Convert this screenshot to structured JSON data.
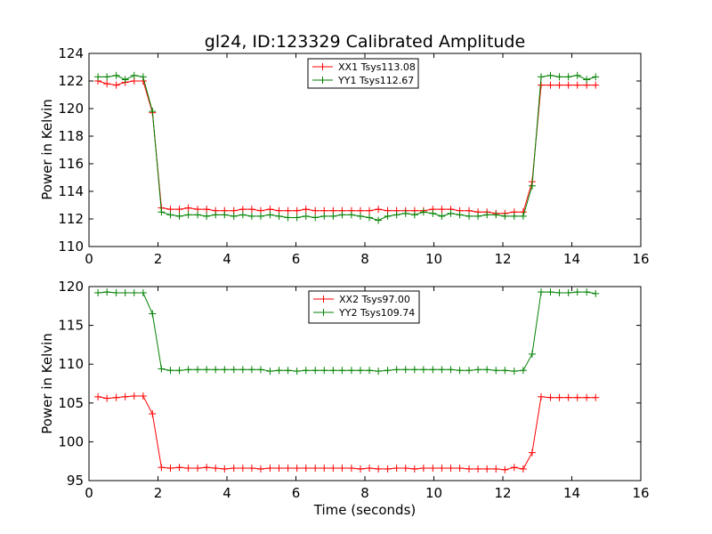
{
  "chart_data": [
    {
      "type": "line",
      "title": "gl24, ID:123329 Calibrated Amplitude",
      "xlabel": "",
      "ylabel": "Power in Kelvin",
      "xlim": [
        0,
        16
      ],
      "ylim": [
        110,
        124
      ],
      "xticks": [
        0,
        2,
        4,
        6,
        8,
        10,
        12,
        14,
        16
      ],
      "yticks": [
        110,
        112,
        114,
        116,
        118,
        120,
        122,
        124
      ],
      "grid": false,
      "legend_position": "top-center",
      "x": [
        0.26,
        0.52,
        0.79,
        1.05,
        1.31,
        1.57,
        1.84,
        2.1,
        2.36,
        2.62,
        2.88,
        3.15,
        3.41,
        3.67,
        3.93,
        4.2,
        4.46,
        4.72,
        4.98,
        5.25,
        5.51,
        5.77,
        6.03,
        6.29,
        6.56,
        6.82,
        7.08,
        7.34,
        7.61,
        7.87,
        8.13,
        8.39,
        8.66,
        8.92,
        9.18,
        9.44,
        9.7,
        9.97,
        10.23,
        10.49,
        10.75,
        11.02,
        11.28,
        11.54,
        11.8,
        12.06,
        12.33,
        12.59,
        12.85,
        13.11,
        13.38,
        13.64,
        13.9,
        14.16,
        14.43,
        14.69
      ],
      "series": [
        {
          "name": "XX1 Tsys113.08",
          "color": "#ff0000",
          "values": [
            122.0,
            121.8,
            121.7,
            121.9,
            122.0,
            122.0,
            119.7,
            112.8,
            112.7,
            112.7,
            112.8,
            112.7,
            112.7,
            112.6,
            112.6,
            112.6,
            112.7,
            112.7,
            112.6,
            112.7,
            112.6,
            112.6,
            112.6,
            112.7,
            112.6,
            112.6,
            112.6,
            112.6,
            112.6,
            112.6,
            112.6,
            112.7,
            112.6,
            112.6,
            112.6,
            112.6,
            112.6,
            112.7,
            112.7,
            112.7,
            112.6,
            112.6,
            112.5,
            112.5,
            112.4,
            112.4,
            112.5,
            112.5,
            114.7,
            121.7,
            121.7,
            121.7,
            121.7,
            121.7,
            121.7,
            121.7
          ]
        },
        {
          "name": "YY1 Tsys112.67",
          "color": "#008000",
          "values": [
            122.3,
            122.3,
            122.4,
            122.1,
            122.4,
            122.3,
            119.8,
            112.5,
            112.3,
            112.2,
            112.3,
            112.3,
            112.2,
            112.3,
            112.3,
            112.2,
            112.3,
            112.2,
            112.2,
            112.3,
            112.2,
            112.1,
            112.1,
            112.2,
            112.1,
            112.2,
            112.2,
            112.3,
            112.3,
            112.2,
            112.1,
            111.9,
            112.2,
            112.3,
            112.4,
            112.3,
            112.5,
            112.4,
            112.2,
            112.4,
            112.3,
            112.2,
            112.2,
            112.3,
            112.3,
            112.2,
            112.2,
            112.2,
            114.4,
            122.3,
            122.4,
            122.3,
            122.3,
            122.4,
            122.1,
            122.3
          ]
        }
      ]
    },
    {
      "type": "line",
      "title": "",
      "xlabel": "Time (seconds)",
      "ylabel": "Power in Kelvin",
      "xlim": [
        0,
        16
      ],
      "ylim": [
        95,
        120
      ],
      "xticks": [
        0,
        2,
        4,
        6,
        8,
        10,
        12,
        14,
        16
      ],
      "yticks": [
        95,
        100,
        105,
        110,
        115,
        120
      ],
      "grid": false,
      "legend_position": "top-center",
      "x": [
        0.26,
        0.52,
        0.79,
        1.05,
        1.31,
        1.57,
        1.84,
        2.1,
        2.36,
        2.62,
        2.88,
        3.15,
        3.41,
        3.67,
        3.93,
        4.2,
        4.46,
        4.72,
        4.98,
        5.25,
        5.51,
        5.77,
        6.03,
        6.29,
        6.56,
        6.82,
        7.08,
        7.34,
        7.61,
        7.87,
        8.13,
        8.39,
        8.66,
        8.92,
        9.18,
        9.44,
        9.7,
        9.97,
        10.23,
        10.49,
        10.75,
        11.02,
        11.28,
        11.54,
        11.8,
        12.06,
        12.33,
        12.59,
        12.85,
        13.11,
        13.38,
        13.64,
        13.9,
        14.16,
        14.43,
        14.69
      ],
      "series": [
        {
          "name": "XX2 Tsys97.00",
          "color": "#ff0000",
          "values": [
            105.8,
            105.6,
            105.7,
            105.8,
            105.9,
            105.9,
            103.6,
            96.7,
            96.6,
            96.7,
            96.6,
            96.6,
            96.7,
            96.6,
            96.5,
            96.6,
            96.6,
            96.6,
            96.5,
            96.6,
            96.6,
            96.6,
            96.6,
            96.6,
            96.6,
            96.6,
            96.6,
            96.6,
            96.6,
            96.5,
            96.6,
            96.5,
            96.5,
            96.6,
            96.6,
            96.5,
            96.6,
            96.6,
            96.6,
            96.6,
            96.6,
            96.5,
            96.5,
            96.5,
            96.5,
            96.4,
            96.7,
            96.5,
            98.6,
            105.8,
            105.7,
            105.7,
            105.7,
            105.7,
            105.7,
            105.7
          ]
        },
        {
          "name": "YY2 Tsys109.74",
          "color": "#008000",
          "values": [
            119.2,
            119.3,
            119.2,
            119.2,
            119.2,
            119.2,
            116.5,
            109.4,
            109.2,
            109.2,
            109.3,
            109.3,
            109.3,
            109.3,
            109.3,
            109.3,
            109.3,
            109.3,
            109.3,
            109.1,
            109.2,
            109.2,
            109.1,
            109.2,
            109.2,
            109.2,
            109.2,
            109.2,
            109.2,
            109.2,
            109.2,
            109.1,
            109.2,
            109.3,
            109.3,
            109.3,
            109.3,
            109.3,
            109.3,
            109.3,
            109.2,
            109.2,
            109.3,
            109.3,
            109.2,
            109.2,
            109.1,
            109.2,
            111.3,
            119.3,
            119.3,
            119.2,
            119.2,
            119.3,
            119.3,
            119.1
          ]
        }
      ]
    }
  ]
}
